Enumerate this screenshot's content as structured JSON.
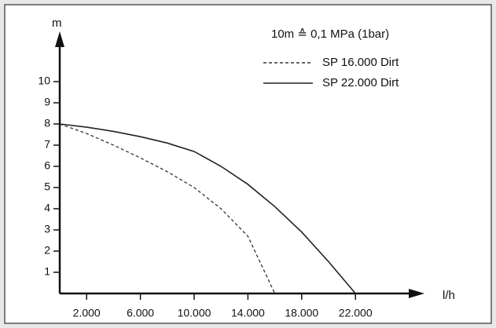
{
  "chart_data": {
    "type": "line",
    "annotation": "10m ≙ 0,1 MPa (1bar)",
    "y_label": "m",
    "x_label": "l/h",
    "x": [
      0,
      2000,
      4000,
      6000,
      8000,
      10000,
      12000,
      14000,
      16000,
      18000,
      20000,
      22000
    ],
    "series": [
      {
        "name": "SP 16.000 Dirt",
        "color": "#333333",
        "dash": true,
        "values": [
          8,
          7.55,
          7.0,
          6.4,
          5.75,
          5.0,
          4.0,
          2.7,
          0,
          null,
          null,
          null
        ]
      },
      {
        "name": "SP 22.000 Dirt",
        "color": "#222222",
        "dash": false,
        "values": [
          8,
          7.85,
          7.65,
          7.4,
          7.1,
          6.7,
          6.0,
          5.15,
          4.1,
          2.9,
          1.5,
          0
        ]
      }
    ],
    "xlim": [
      0,
      26000
    ],
    "ylim": [
      0,
      12
    ],
    "xticks": [
      {
        "value": 2000,
        "label": "2.000"
      },
      {
        "value": 6000,
        "label": "6.000"
      },
      {
        "value": 10000,
        "label": "10.000"
      },
      {
        "value": 14000,
        "label": "14.000"
      },
      {
        "value": 18000,
        "label": "18.000"
      },
      {
        "value": 22000,
        "label": "22.000"
      }
    ],
    "yticks": [
      1,
      2,
      3,
      4,
      5,
      6,
      7,
      8,
      9,
      10
    ]
  }
}
